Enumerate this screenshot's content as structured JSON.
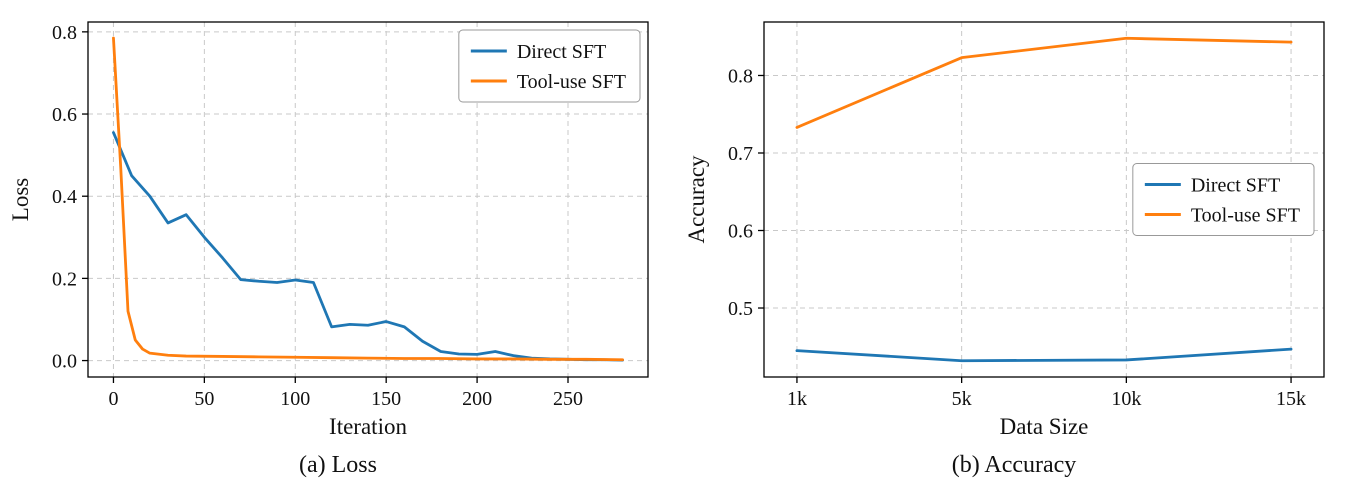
{
  "figure": {
    "captions": {
      "a": "(a) Loss",
      "b": "(b) Accuracy"
    }
  },
  "colors": {
    "direct_sft": "#1f77b4",
    "tool_use_sft": "#ff7f0e",
    "grid": "#c9c9c9",
    "frame": "#000000",
    "legend_edge": "#999999"
  },
  "chart_data": [
    {
      "type": "line",
      "title": "",
      "xlabel": "Iteration",
      "ylabel": "Loss",
      "xlim": [
        -14,
        294
      ],
      "ylim": [
        -0.04,
        0.824
      ],
      "grid": true,
      "xtick_values": [
        0,
        50,
        100,
        150,
        200,
        250
      ],
      "xtick_labels": [
        "0",
        "50",
        "100",
        "150",
        "200",
        "250"
      ],
      "ytick_values": [
        0.0,
        0.2,
        0.4,
        0.6,
        0.8
      ],
      "ytick_labels": [
        "0.0",
        "0.2",
        "0.4",
        "0.6",
        "0.8"
      ],
      "legend": {
        "position": "upper right"
      },
      "series": [
        {
          "name": "Direct SFT",
          "color": "#1f77b4",
          "x": [
            0,
            10,
            20,
            30,
            40,
            50,
            60,
            70,
            80,
            90,
            100,
            110,
            120,
            130,
            140,
            150,
            160,
            170,
            180,
            190,
            200,
            210,
            220,
            230,
            240,
            250,
            260,
            270,
            280
          ],
          "y": [
            0.555,
            0.45,
            0.4,
            0.335,
            0.355,
            0.3,
            0.25,
            0.197,
            0.193,
            0.19,
            0.196,
            0.19,
            0.082,
            0.088,
            0.086,
            0.095,
            0.082,
            0.047,
            0.022,
            0.016,
            0.015,
            0.022,
            0.012,
            0.006,
            0.004,
            0.003,
            0.002,
            0.002,
            0.001
          ]
        },
        {
          "name": "Tool-use SFT",
          "color": "#ff7f0e",
          "x": [
            0,
            4,
            8,
            12,
            16,
            20,
            30,
            40,
            60,
            80,
            100,
            120,
            140,
            160,
            180,
            200,
            220,
            240,
            260,
            280
          ],
          "y": [
            0.785,
            0.47,
            0.12,
            0.05,
            0.028,
            0.018,
            0.013,
            0.011,
            0.01,
            0.009,
            0.008,
            0.007,
            0.006,
            0.005,
            0.005,
            0.004,
            0.004,
            0.003,
            0.003,
            0.002
          ]
        }
      ]
    },
    {
      "type": "line",
      "title": "",
      "xlabel": "Data Size",
      "ylabel": "Accuracy",
      "categories": [
        "1k",
        "5k",
        "10k",
        "15k"
      ],
      "xlim": [
        -0.2,
        3.2
      ],
      "ylim": [
        0.411,
        0.869
      ],
      "grid": true,
      "xtick_values": [
        0,
        1,
        2,
        3
      ],
      "xtick_labels": [
        "1k",
        "5k",
        "10k",
        "15k"
      ],
      "ytick_values": [
        0.5,
        0.6,
        0.7,
        0.8
      ],
      "ytick_labels": [
        "0.5",
        "0.6",
        "0.7",
        "0.8"
      ],
      "legend": {
        "position": "center right"
      },
      "series": [
        {
          "name": "Direct SFT",
          "color": "#1f77b4",
          "values": [
            0.445,
            0.432,
            0.433,
            0.447
          ]
        },
        {
          "name": "Tool-use SFT",
          "color": "#ff7f0e",
          "values": [
            0.733,
            0.823,
            0.848,
            0.843
          ]
        }
      ]
    }
  ]
}
